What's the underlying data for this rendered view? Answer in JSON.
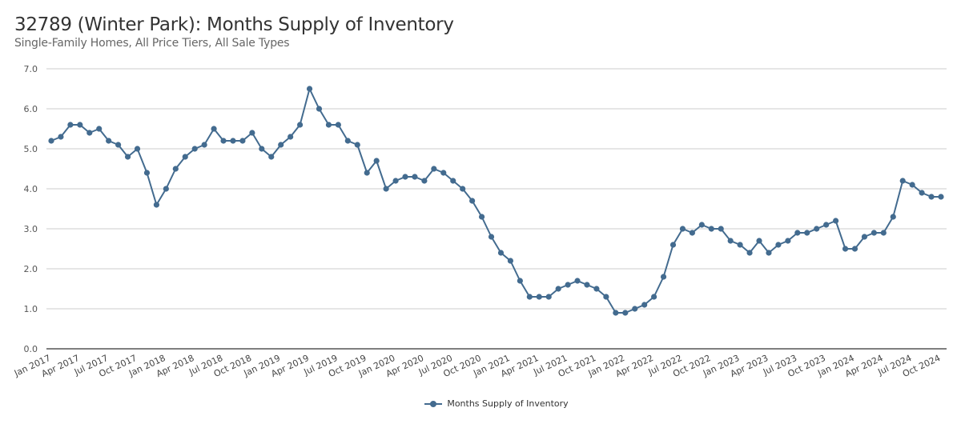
{
  "chart_data": {
    "type": "line",
    "title": "32789 (Winter Park): Months Supply of Inventory",
    "subtitle": "Single-Family Homes, All Price Tiers, All Sale Types",
    "xlabel": "",
    "ylabel": "",
    "ylim": [
      0,
      7
    ],
    "yticks": [
      "0.0",
      "1.0",
      "2.0",
      "3.0",
      "4.0",
      "5.0",
      "6.0",
      "7.0"
    ],
    "grid": true,
    "legend_position": "bottom",
    "xtick_labels": [
      "Jan 2017",
      "Apr 2017",
      "Jul 2017",
      "Oct 2017",
      "Jan 2018",
      "Apr 2018",
      "Jul 2018",
      "Oct 2018",
      "Jan 2019",
      "Apr 2019",
      "Jul 2019",
      "Oct 2019",
      "Jan 2020",
      "Apr 2020",
      "Jul 2020",
      "Oct 2020",
      "Jan 2021",
      "Apr 2021",
      "Jul 2021",
      "Oct 2021",
      "Jan 2022",
      "Apr 2022",
      "Jul 2022",
      "Oct 2022",
      "Jan 2023",
      "Apr 2023",
      "Jul 2023",
      "Oct 2023",
      "Jan 2024",
      "Apr 2024",
      "Jul 2024",
      "Oct 2024"
    ],
    "xtick_every_months": 3,
    "series": [
      {
        "name": "Months Supply of Inventory",
        "color": "#436b8f",
        "start": "Jan 2017",
        "values": [
          5.2,
          5.3,
          5.6,
          5.6,
          5.4,
          5.5,
          5.2,
          5.1,
          4.8,
          5.0,
          4.4,
          3.6,
          4.0,
          4.5,
          4.8,
          5.0,
          5.1,
          5.5,
          5.2,
          5.2,
          5.2,
          5.4,
          5.0,
          4.8,
          5.1,
          5.3,
          5.6,
          6.5,
          6.0,
          5.6,
          5.6,
          5.2,
          5.1,
          4.4,
          4.7,
          4.0,
          4.2,
          4.3,
          4.3,
          4.2,
          4.5,
          4.4,
          4.2,
          4.0,
          3.7,
          3.3,
          2.8,
          2.4,
          2.2,
          1.7,
          1.3,
          1.3,
          1.3,
          1.5,
          1.6,
          1.7,
          1.6,
          1.5,
          1.3,
          0.9,
          0.9,
          1.0,
          1.1,
          1.3,
          1.8,
          2.6,
          3.0,
          2.9,
          3.1,
          3.0,
          3.0,
          2.7,
          2.6,
          2.4,
          2.7,
          2.4,
          2.6,
          2.7,
          2.9,
          2.9,
          3.0,
          3.1,
          3.2,
          2.5,
          2.5,
          2.8,
          2.9,
          2.9,
          3.3,
          4.2,
          4.1,
          3.9,
          3.8,
          3.8
        ]
      }
    ]
  }
}
